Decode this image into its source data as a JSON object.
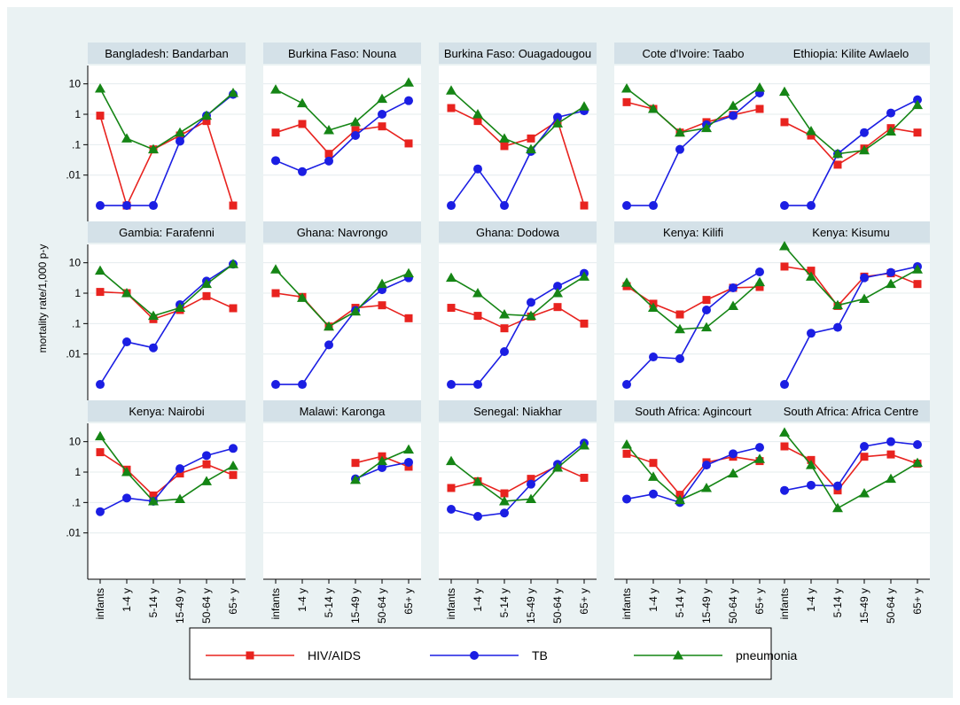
{
  "chart_data": {
    "type": "line",
    "ylabel": "mortality rate/1,000 p-y",
    "yscale": "log",
    "yticks": [
      {
        "value": 10,
        "label": "10"
      },
      {
        "value": 1,
        "label": "1"
      },
      {
        "value": 0.1,
        "label": ".1"
      },
      {
        "value": 0.01,
        "label": ".01"
      }
    ],
    "ylim": [
      0.0003,
      40
    ],
    "categories": [
      "infants",
      "1-4 y",
      "5-14 y",
      "15-49 y",
      "50-64 y",
      "65+ y"
    ],
    "grid": true,
    "legend": {
      "position": "bottom",
      "entries": [
        {
          "name": "HIV/AIDS",
          "color": "#e8231f",
          "marker": "square"
        },
        {
          "name": "TB",
          "color": "#1b1ee3",
          "marker": "circle"
        },
        {
          "name": "pneumonia",
          "color": "#158515",
          "marker": "triangle"
        }
      ]
    },
    "panels": [
      {
        "title": "Bangladesh: Bandarban",
        "series": [
          {
            "name": "HIV/AIDS",
            "values": [
              0.9,
              0.001,
              0.07,
              0.2,
              0.6,
              0.001
            ]
          },
          {
            "name": "TB",
            "values": [
              0.001,
              0.001,
              0.001,
              0.13,
              0.9,
              4.5
            ]
          },
          {
            "name": "pneumonia",
            "values": [
              7,
              0.16,
              0.07,
              0.25,
              0.9,
              5
            ]
          }
        ]
      },
      {
        "title": "Burkina Faso: Nouna",
        "series": [
          {
            "name": "HIV/AIDS",
            "values": [
              0.25,
              0.48,
              0.05,
              0.3,
              0.4,
              0.11
            ]
          },
          {
            "name": "TB",
            "values": [
              0.03,
              0.013,
              0.029,
              0.2,
              1,
              2.8
            ]
          },
          {
            "name": "pneumonia",
            "values": [
              6.5,
              2.3,
              0.3,
              0.55,
              3.2,
              11
            ]
          }
        ]
      },
      {
        "title": "Burkina Faso: Ouagadougou",
        "series": [
          {
            "name": "HIV/AIDS",
            "values": [
              1.6,
              0.6,
              0.09,
              0.16,
              0.6,
              0.001
            ]
          },
          {
            "name": "TB",
            "values": [
              0.001,
              0.016,
              0.001,
              0.06,
              0.8,
              1.3
            ]
          },
          {
            "name": "pneumonia",
            "values": [
              6,
              1,
              0.16,
              0.07,
              0.5,
              1.8
            ]
          }
        ]
      },
      {
        "title": "Cote d'Ivoire: Taabo",
        "series": [
          {
            "name": "HIV/AIDS",
            "values": [
              2.5,
              1.5,
              0.25,
              0.55,
              0.95,
              1.5
            ]
          },
          {
            "name": "TB",
            "values": [
              0.001,
              0.001,
              0.07,
              0.45,
              0.9,
              5
            ]
          },
          {
            "name": "pneumonia",
            "values": [
              7,
              1.5,
              0.25,
              0.35,
              1.9,
              7.5
            ]
          }
        ]
      },
      {
        "title": "Ethiopia: Kilite Awlaelo",
        "series": [
          {
            "name": "HIV/AIDS",
            "values": [
              0.55,
              0.2,
              0.022,
              0.075,
              0.35,
              0.25
            ]
          },
          {
            "name": "TB",
            "values": [
              0.001,
              0.001,
              0.05,
              0.25,
              1.1,
              3
            ]
          },
          {
            "name": "pneumonia",
            "values": [
              5.5,
              0.28,
              0.05,
              0.065,
              0.27,
              2
            ]
          }
        ]
      },
      {
        "title": "Gambia: Farafenni",
        "series": [
          {
            "name": "HIV/AIDS",
            "values": [
              1.1,
              1,
              0.14,
              0.28,
              0.8,
              0.32
            ]
          },
          {
            "name": "TB",
            "values": [
              0.001,
              0.025,
              0.016,
              0.42,
              2.5,
              9
            ]
          },
          {
            "name": "pneumonia",
            "values": [
              5.5,
              1,
              0.18,
              0.33,
              2,
              9
            ]
          }
        ]
      },
      {
        "title": "Ghana: Navrongo",
        "series": [
          {
            "name": "HIV/AIDS",
            "values": [
              1,
              0.75,
              0.08,
              0.33,
              0.4,
              0.15
            ]
          },
          {
            "name": "TB",
            "values": [
              0.001,
              0.001,
              0.02,
              0.27,
              1.3,
              3.2
            ]
          },
          {
            "name": "pneumonia",
            "values": [
              6,
              0.7,
              0.08,
              0.25,
              2,
              4.5
            ]
          }
        ]
      },
      {
        "title": "Ghana: Dodowa",
        "series": [
          {
            "name": "HIV/AIDS",
            "values": [
              0.33,
              0.18,
              0.07,
              0.17,
              0.35,
              0.1
            ]
          },
          {
            "name": "TB",
            "values": [
              0.001,
              0.001,
              0.012,
              0.5,
              1.7,
              4.5
            ]
          },
          {
            "name": "pneumonia",
            "values": [
              3.2,
              1,
              0.2,
              0.18,
              1,
              3.5
            ]
          }
        ]
      },
      {
        "title": "Kenya: Kilifi",
        "series": [
          {
            "name": "HIV/AIDS",
            "values": [
              1.7,
              0.45,
              0.2,
              0.6,
              1.5,
              1.6
            ]
          },
          {
            "name": "TB",
            "values": [
              0.001,
              0.008,
              0.007,
              0.28,
              1.5,
              5
            ]
          },
          {
            "name": "pneumonia",
            "values": [
              2.2,
              0.33,
              0.065,
              0.075,
              0.38,
              2.3
            ]
          }
        ]
      },
      {
        "title": "Kenya: Kisumu",
        "series": [
          {
            "name": "HIV/AIDS",
            "values": [
              7.5,
              5.5,
              0.38,
              3.5,
              4.5,
              2
            ]
          },
          {
            "name": "TB",
            "values": [
              0.001,
              0.048,
              0.075,
              3.2,
              4.8,
              7.5
            ]
          },
          {
            "name": "pneumonia",
            "values": [
              35,
              3.5,
              0.4,
              0.65,
              2,
              6
            ]
          }
        ]
      },
      {
        "title": "Kenya: Nairobi",
        "series": [
          {
            "name": "HIV/AIDS",
            "values": [
              4.5,
              1.2,
              0.17,
              0.9,
              1.8,
              0.8
            ]
          },
          {
            "name": "TB",
            "values": [
              0.05,
              0.14,
              0.11,
              1.3,
              3.5,
              6
            ]
          },
          {
            "name": "pneumonia",
            "values": [
              15,
              1,
              0.11,
              0.13,
              0.5,
              1.6
            ]
          }
        ]
      },
      {
        "title": "Malawi: Karonga",
        "series": [
          {
            "name": "HIV/AIDS",
            "values": [
              null,
              null,
              null,
              2,
              3.3,
              1.5
            ]
          },
          {
            "name": "TB",
            "values": [
              null,
              null,
              null,
              0.6,
              1.4,
              2.1
            ]
          },
          {
            "name": "pneumonia",
            "values": [
              null,
              null,
              null,
              0.55,
              2.3,
              5.5
            ]
          }
        ]
      },
      {
        "title": "Senegal: Niakhar",
        "series": [
          {
            "name": "HIV/AIDS",
            "values": [
              0.3,
              0.5,
              0.2,
              0.6,
              1.6,
              0.65
            ]
          },
          {
            "name": "TB",
            "values": [
              0.06,
              0.035,
              0.045,
              0.4,
              1.8,
              9
            ]
          },
          {
            "name": "pneumonia",
            "values": [
              2.3,
              0.48,
              0.11,
              0.13,
              1.4,
              7.5
            ]
          }
        ]
      },
      {
        "title": "South Africa: Agincourt",
        "series": [
          {
            "name": "HIV/AIDS",
            "values": [
              4,
              2,
              0.18,
              2.1,
              3.2,
              2.3
            ]
          },
          {
            "name": "TB",
            "values": [
              0.13,
              0.19,
              0.1,
              1.7,
              4,
              6.5
            ]
          },
          {
            "name": "pneumonia",
            "values": [
              8,
              0.7,
              0.12,
              0.3,
              0.9,
              2.7
            ]
          }
        ]
      },
      {
        "title": "South Africa: Africa Centre",
        "series": [
          {
            "name": "HIV/AIDS",
            "values": [
              7,
              2.5,
              0.25,
              3.2,
              3.8,
              1.9
            ]
          },
          {
            "name": "TB",
            "values": [
              0.25,
              0.37,
              0.35,
              7,
              10,
              8
            ]
          },
          {
            "name": "pneumonia",
            "values": [
              20,
              1.7,
              0.065,
              0.2,
              0.6,
              2
            ]
          }
        ]
      }
    ]
  }
}
